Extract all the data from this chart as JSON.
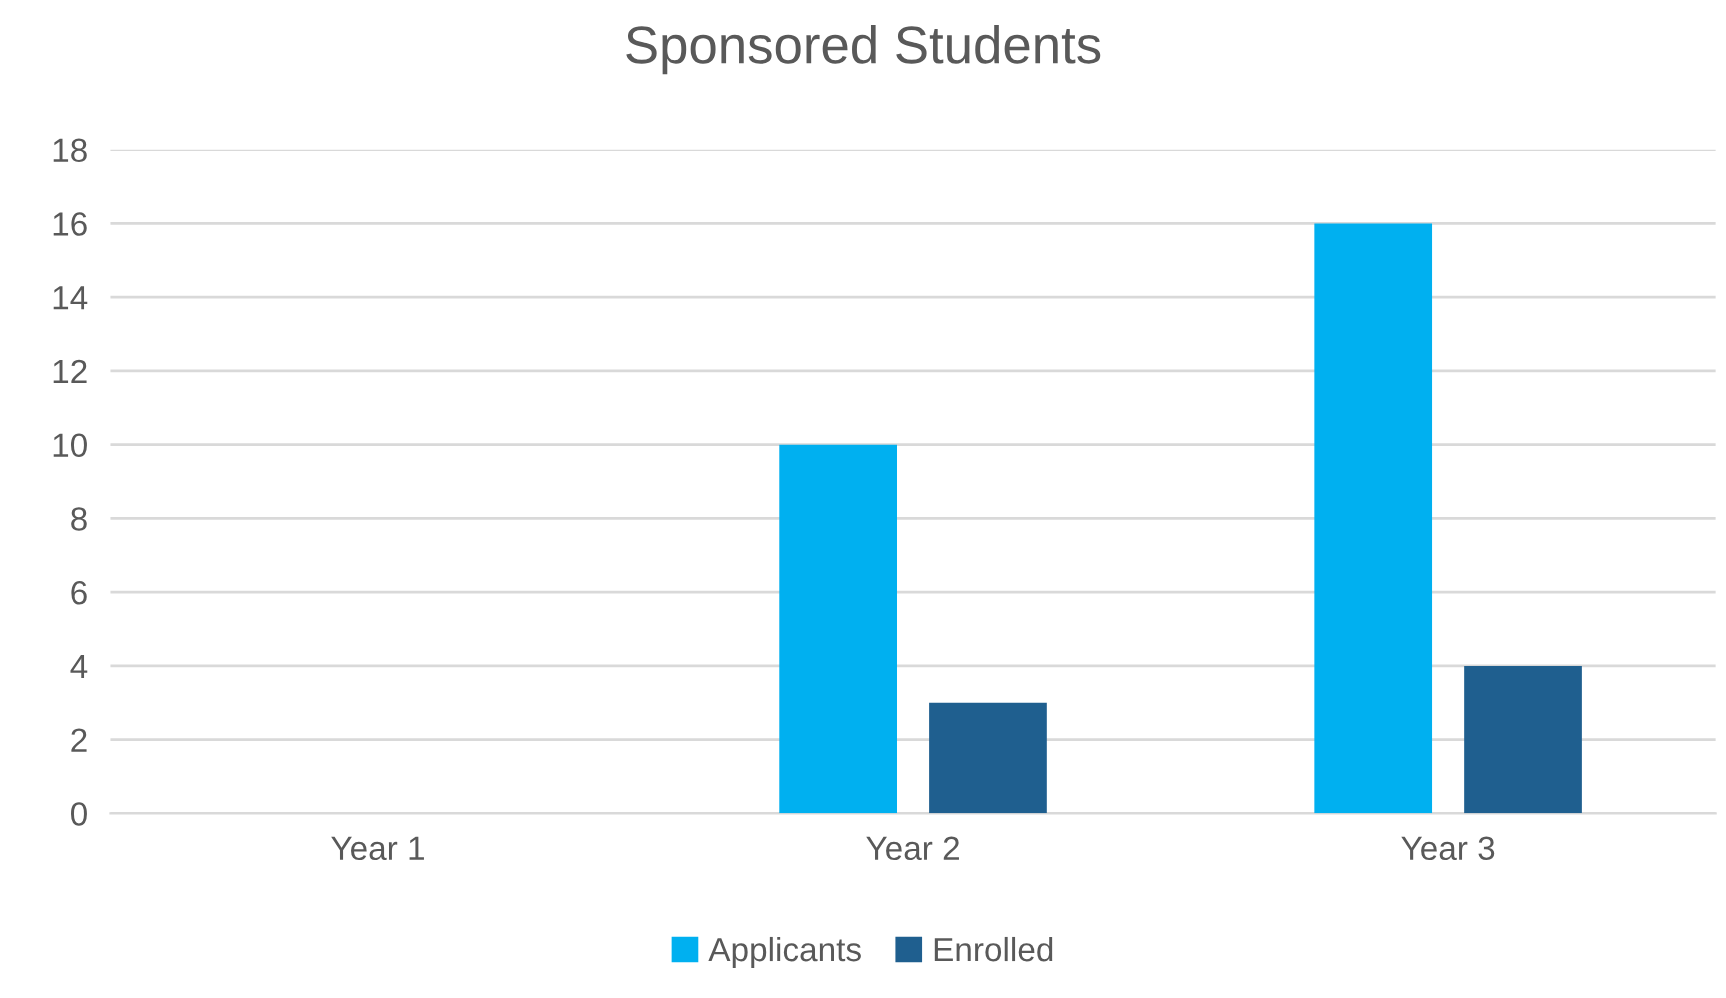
{
  "chart_data": {
    "type": "bar",
    "title": "Sponsored Students",
    "categories": [
      "Year 1",
      "Year 2",
      "Year 3"
    ],
    "series": [
      {
        "name": "Applicants",
        "color": "#00b0f0",
        "values": [
          0,
          10,
          16
        ]
      },
      {
        "name": "Enrolled",
        "color": "#1f5f8f",
        "values": [
          0,
          3,
          4
        ]
      }
    ],
    "ylim": [
      0,
      18
    ],
    "yticks": [
      0,
      2,
      4,
      6,
      8,
      10,
      12,
      14,
      16,
      18
    ],
    "grid": "y",
    "legend": "bottom"
  }
}
